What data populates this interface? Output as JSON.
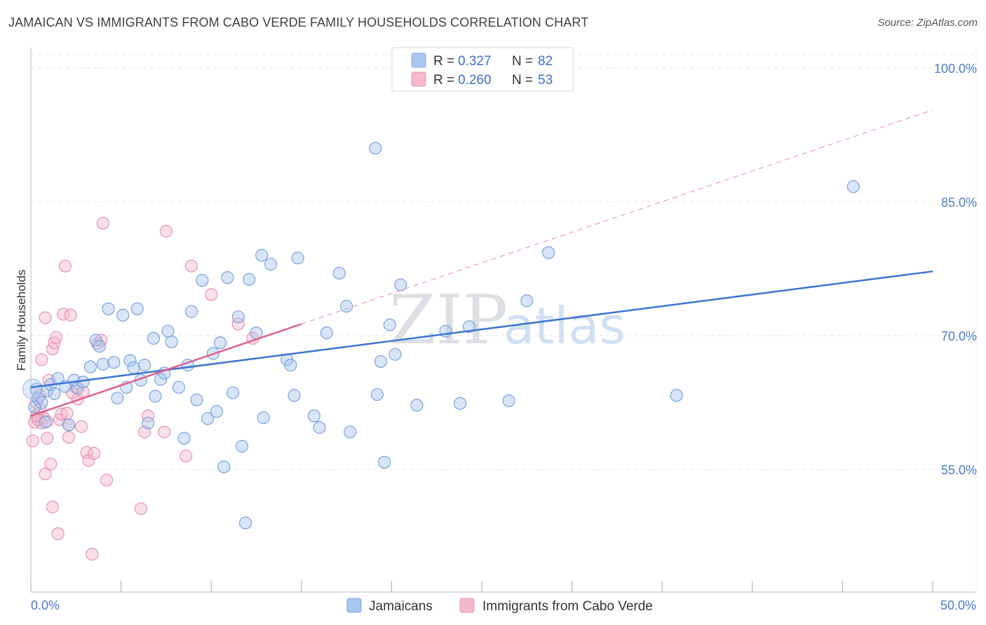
{
  "header": {
    "title": "JAMAICAN VS IMMIGRANTS FROM CABO VERDE FAMILY HOUSEHOLDS CORRELATION CHART",
    "source": "Source: ZipAtlas.com"
  },
  "watermark": {
    "zip": "ZIP",
    "atlas": "atlas"
  },
  "legend": {
    "items": [
      {
        "r_label": "R =",
        "r_value": "0.327",
        "n_label": "N =",
        "n_value": "82",
        "color": "#a8c6ef"
      },
      {
        "r_label": "R =",
        "r_value": "0.260",
        "n_label": "N =",
        "n_value": "53",
        "color": "#f5b8cb"
      }
    ]
  },
  "bottom_legend": {
    "items": [
      {
        "label": "Jamaicans",
        "color": "#a8c6ef"
      },
      {
        "label": "Immigrants from Cabo Verde",
        "color": "#f5b8cb"
      }
    ]
  },
  "chart_data": {
    "type": "scatter",
    "title": "JAMAICAN VS IMMIGRANTS FROM CABO VERDE FAMILY HOUSEHOLDS CORRELATION CHART",
    "xlabel": "",
    "ylabel": "Family Households",
    "xlim": [
      0,
      50
    ],
    "ylim": [
      40,
      102.5
    ],
    "x_tick_labels": [
      "0.0%",
      "50.0%"
    ],
    "y_ticks": [
      55,
      70,
      85,
      100
    ],
    "y_tick_labels": [
      "55.0%",
      "70.0%",
      "85.0%",
      "100.0%"
    ],
    "colors": {
      "jamaicans": "#3a74d4",
      "cabo_verde": "#e0608c"
    },
    "series": [
      {
        "name": "Jamaicans",
        "trend": {
          "x": [
            0,
            50
          ],
          "y": [
            64.2,
            77.2
          ]
        },
        "points": [
          [
            0.3,
            64.0
          ],
          [
            0.4,
            63.0
          ],
          [
            0.6,
            62.5
          ],
          [
            0.8,
            60.3
          ],
          [
            0.9,
            63.8
          ],
          [
            1.1,
            64.5
          ],
          [
            1.3,
            63.5
          ],
          [
            1.5,
            65.2
          ],
          [
            1.9,
            64.3
          ],
          [
            2.1,
            60.0
          ],
          [
            2.4,
            65.0
          ],
          [
            2.6,
            64.1
          ],
          [
            2.9,
            64.8
          ],
          [
            3.3,
            66.5
          ],
          [
            3.6,
            69.5
          ],
          [
            3.8,
            68.8
          ],
          [
            4.0,
            66.8
          ],
          [
            4.3,
            73.0
          ],
          [
            4.6,
            67.0
          ],
          [
            4.8,
            63.0
          ],
          [
            5.1,
            72.3
          ],
          [
            5.3,
            64.2
          ],
          [
            5.5,
            67.2
          ],
          [
            5.7,
            66.4
          ],
          [
            5.9,
            73.0
          ],
          [
            6.1,
            65.0
          ],
          [
            6.3,
            66.7
          ],
          [
            6.5,
            60.2
          ],
          [
            6.8,
            69.7
          ],
          [
            6.9,
            63.2
          ],
          [
            7.2,
            65.1
          ],
          [
            7.4,
            65.8
          ],
          [
            7.6,
            70.5
          ],
          [
            7.8,
            69.3
          ],
          [
            8.2,
            64.2
          ],
          [
            8.5,
            58.5
          ],
          [
            8.7,
            66.7
          ],
          [
            8.9,
            72.7
          ],
          [
            9.2,
            62.8
          ],
          [
            9.5,
            76.2
          ],
          [
            9.8,
            60.7
          ],
          [
            10.3,
            61.5
          ],
          [
            10.1,
            68.0
          ],
          [
            10.5,
            69.2
          ],
          [
            10.7,
            55.3
          ],
          [
            10.9,
            76.5
          ],
          [
            11.2,
            63.6
          ],
          [
            11.5,
            72.1
          ],
          [
            11.7,
            57.6
          ],
          [
            11.9,
            49.0
          ],
          [
            12.1,
            76.3
          ],
          [
            12.5,
            70.3
          ],
          [
            12.8,
            79.0
          ],
          [
            12.9,
            60.8
          ],
          [
            13.3,
            78.0
          ],
          [
            14.2,
            67.3
          ],
          [
            14.4,
            66.7
          ],
          [
            14.6,
            63.3
          ],
          [
            14.8,
            78.7
          ],
          [
            15.7,
            61.0
          ],
          [
            16.0,
            59.7
          ],
          [
            16.4,
            70.3
          ],
          [
            17.1,
            77.0
          ],
          [
            17.5,
            73.3
          ],
          [
            17.7,
            59.2
          ],
          [
            19.1,
            91.0
          ],
          [
            19.2,
            63.4
          ],
          [
            19.4,
            67.1
          ],
          [
            19.6,
            55.8
          ],
          [
            19.9,
            71.2
          ],
          [
            20.2,
            67.9
          ],
          [
            20.5,
            75.7
          ],
          [
            21.4,
            62.2
          ],
          [
            23.0,
            70.5
          ],
          [
            23.8,
            62.4
          ],
          [
            24.3,
            71.0
          ],
          [
            26.5,
            62.7
          ],
          [
            27.5,
            73.9
          ],
          [
            28.7,
            79.3
          ],
          [
            35.8,
            63.3
          ],
          [
            45.6,
            86.7
          ],
          [
            0.2,
            62.0
          ]
        ]
      },
      {
        "name": "Immigrants from Cabo Verde",
        "trend": {
          "x": [
            0,
            15
          ],
          "y": [
            61.0,
            71.3
          ]
        },
        "trend_extension": {
          "x": [
            15,
            50
          ],
          "y": [
            71.3,
            95.3
          ]
        },
        "points": [
          [
            0.1,
            58.2
          ],
          [
            0.2,
            60.3
          ],
          [
            0.3,
            62.5
          ],
          [
            0.4,
            61.2
          ],
          [
            0.5,
            63.3
          ],
          [
            0.6,
            67.3
          ],
          [
            0.7,
            60.8
          ],
          [
            0.8,
            72.0
          ],
          [
            0.9,
            58.5
          ],
          [
            1.0,
            65.0
          ],
          [
            1.1,
            55.6
          ],
          [
            1.2,
            68.5
          ],
          [
            1.3,
            69.2
          ],
          [
            1.4,
            69.8
          ],
          [
            1.5,
            47.8
          ],
          [
            1.6,
            60.6
          ],
          [
            1.7,
            61.2
          ],
          [
            1.8,
            72.4
          ],
          [
            1.9,
            77.8
          ],
          [
            2.0,
            61.3
          ],
          [
            2.1,
            58.6
          ],
          [
            2.2,
            72.3
          ],
          [
            2.3,
            63.6
          ],
          [
            2.5,
            64.2
          ],
          [
            2.6,
            62.9
          ],
          [
            2.8,
            59.8
          ],
          [
            2.9,
            63.7
          ],
          [
            3.1,
            56.9
          ],
          [
            3.2,
            56.0
          ],
          [
            3.4,
            45.5
          ],
          [
            3.5,
            56.8
          ],
          [
            3.7,
            69.1
          ],
          [
            3.9,
            69.5
          ],
          [
            4.0,
            82.6
          ],
          [
            4.2,
            53.8
          ],
          [
            6.1,
            50.6
          ],
          [
            6.3,
            59.2
          ],
          [
            6.5,
            61.0
          ],
          [
            7.4,
            59.2
          ],
          [
            7.5,
            81.7
          ],
          [
            8.6,
            56.5
          ],
          [
            8.9,
            77.8
          ],
          [
            10.0,
            74.6
          ],
          [
            11.5,
            71.3
          ],
          [
            12.3,
            69.7
          ],
          [
            0.6,
            60.2
          ],
          [
            0.8,
            54.5
          ],
          [
            1.2,
            50.8
          ],
          [
            0.4,
            60.6
          ],
          [
            0.3,
            61.0
          ],
          [
            2.1,
            60.0
          ],
          [
            0.9,
            60.4
          ],
          [
            0.5,
            61.8
          ]
        ]
      }
    ]
  }
}
